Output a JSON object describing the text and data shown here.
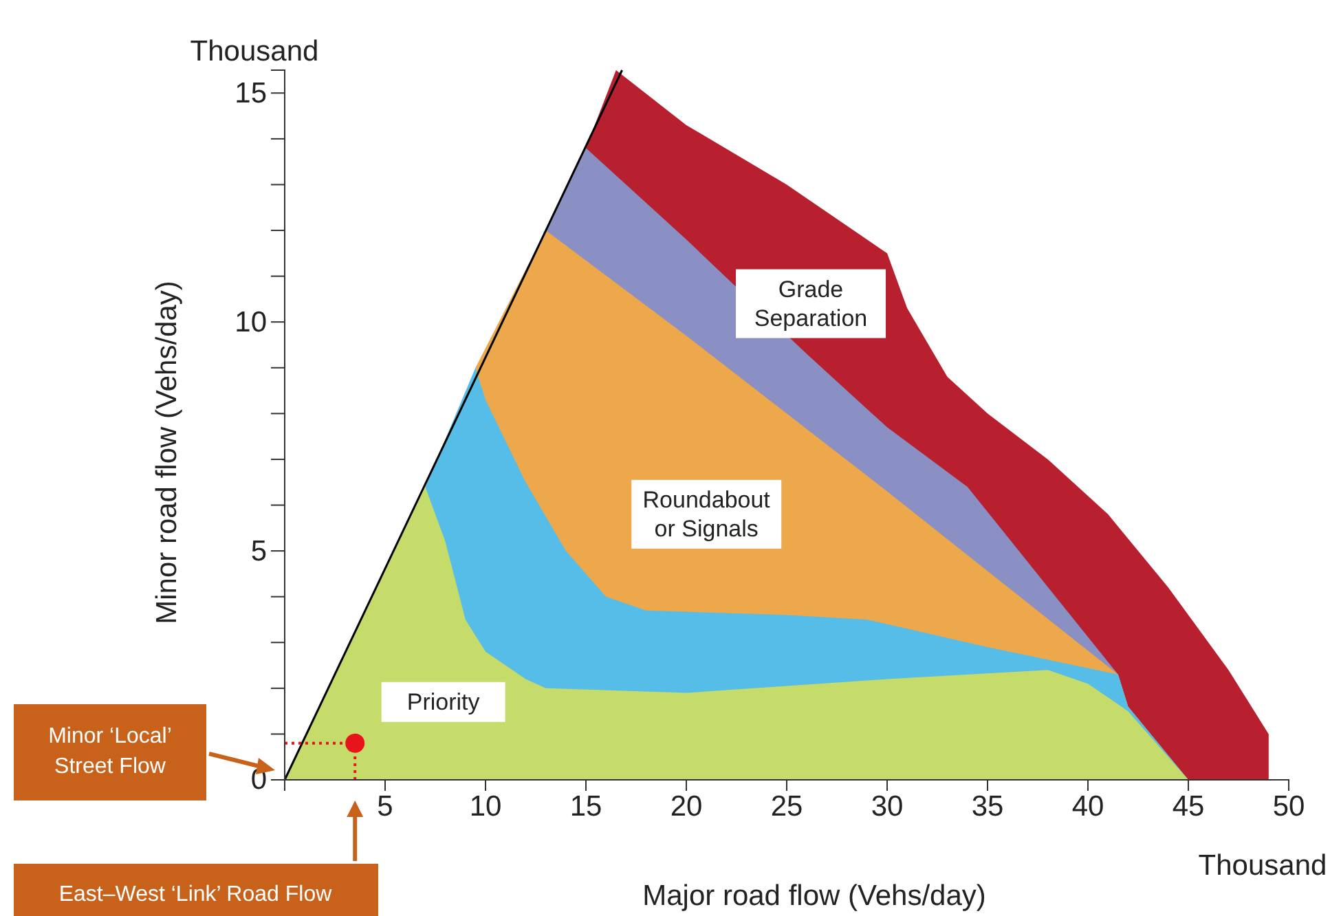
{
  "chart_data": {
    "type": "area",
    "xlabel": "Major road flow (Vehs/day)",
    "ylabel": "Minor road flow (Vehs/day)",
    "xlim": [
      0,
      50
    ],
    "ylim": [
      0,
      15.5
    ],
    "xticks": [
      {
        "value": 0,
        "label": null
      },
      5,
      10,
      15,
      20,
      25,
      30,
      35,
      40,
      45,
      50
    ],
    "yticks": [
      0,
      {
        "value": 1,
        "label": null
      },
      {
        "value": 2,
        "label": null
      },
      {
        "value": 3,
        "label": null
      },
      {
        "value": 4,
        "label": null
      },
      5,
      {
        "value": 6,
        "label": null
      },
      {
        "value": 7,
        "label": null
      },
      {
        "value": 8,
        "label": null
      },
      {
        "value": 9,
        "label": null
      },
      10,
      {
        "value": 11,
        "label": null
      },
      {
        "value": 12,
        "label": null
      },
      {
        "value": 13,
        "label": null
      },
      {
        "value": 14,
        "label": null
      },
      15
    ],
    "grid": false,
    "annotations": [
      "Thousand",
      "Thousand",
      "Minor ‘Local’ Street Flow",
      "East–West ‘Link’ Road Flow"
    ],
    "series": [
      {
        "name": "Grade Separation",
        "color": "#b8202f",
        "x": [
          15,
          16.5,
          20,
          25,
          30,
          31,
          33,
          35,
          38,
          41,
          44,
          47,
          49
        ],
        "values": [
          13.8,
          15.5,
          14.3,
          13.0,
          11.5,
          10.3,
          8.8,
          8.0,
          7.0,
          5.8,
          4.2,
          2.4,
          1.0
        ]
      },
      {
        "color": "#8a8fc4",
        "x": [
          13,
          15,
          20,
          26,
          30,
          34,
          41.5,
          42,
          45
        ],
        "values": [
          12,
          13.8,
          11.8,
          9.3,
          7.7,
          6.4,
          2.3,
          1.6,
          0
        ]
      },
      {
        "name": "Roundabout or Signals",
        "color": "#eca84a",
        "x": [
          9.5,
          13,
          20,
          30,
          41.5,
          42,
          45
        ],
        "values": [
          9,
          12,
          9.7,
          6.3,
          2.3,
          1.6,
          0
        ]
      },
      {
        "color": "#56bde8",
        "x": [
          7,
          9.5,
          10,
          12,
          14,
          16,
          18,
          25,
          29,
          35,
          41.5,
          42,
          45
        ],
        "values": [
          6.4,
          9,
          8.3,
          6.5,
          5.0,
          4.0,
          3.7,
          3.6,
          3.5,
          2.9,
          2.3,
          1.6,
          0
        ]
      },
      {
        "name": "Priority",
        "color": "#c5dc6a",
        "x": [
          0,
          7,
          8,
          9,
          10,
          12,
          13,
          20,
          30,
          38,
          40,
          42,
          45
        ],
        "values": [
          0,
          6.4,
          5.2,
          3.5,
          2.8,
          2.2,
          2.0,
          1.9,
          2.2,
          2.4,
          2.1,
          1.5,
          0
        ]
      },
      {
        "type": "line",
        "color": "#000000",
        "x": [
          0,
          16.8
        ],
        "values": [
          0,
          15.5
        ]
      },
      {
        "type": "line",
        "color": "#e8141c",
        "line_style": "dotted",
        "x": [
          0,
          3.5
        ],
        "values": [
          0.8,
          0.8
        ]
      },
      {
        "type": "line",
        "color": "#e8141c",
        "line_style": "dotted",
        "x": [
          3.5,
          3.5
        ],
        "values": [
          0,
          0.8
        ]
      },
      {
        "type": "scatter",
        "color": "#e8141c",
        "marker": "circle",
        "x": [
          3.5
        ],
        "values": [
          0.8
        ]
      }
    ]
  }
}
